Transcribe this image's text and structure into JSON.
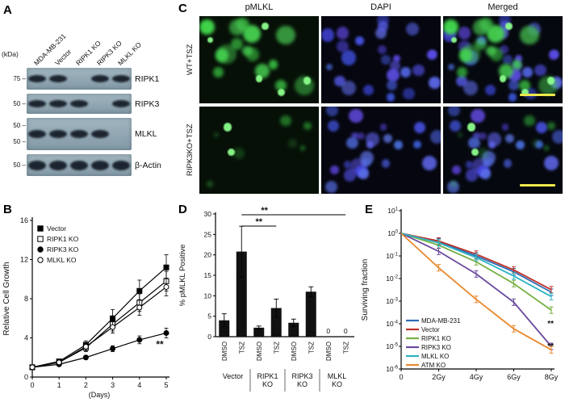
{
  "panel_a": {
    "label": "A",
    "kda_label": "(kDa)",
    "lane_labels": [
      "MDA-MB-231",
      "Vector",
      "RIPK1 KO",
      "RIPK3 KO",
      "MLKL KO"
    ],
    "blots": [
      {
        "protein": "RIPK1",
        "markers": [
          "75"
        ],
        "bands": [
          1,
          1,
          0,
          1,
          1
        ]
      },
      {
        "protein": "RIPK3",
        "markers": [
          "50"
        ],
        "bands": [
          1,
          1,
          1,
          0,
          1
        ]
      },
      {
        "protein": "MLKL",
        "markers": [
          "50",
          "50"
        ],
        "bands": [
          1,
          1,
          1,
          1,
          0
        ]
      },
      {
        "protein": "β-Actin",
        "markers": [
          "50"
        ],
        "bands": [
          1,
          1,
          1,
          1,
          1
        ]
      }
    ]
  },
  "panel_b": {
    "label": "B",
    "chart_data": {
      "type": "line",
      "xlabel": "(Days)",
      "ylabel": "Relative Cell Growth",
      "x": [
        0,
        1,
        2,
        3,
        4,
        5
      ],
      "ylim": [
        0,
        16
      ],
      "yticks": [
        0,
        4,
        8,
        12,
        16
      ],
      "legend_position": "top-left",
      "series": [
        {
          "name": "Vector",
          "marker": "square-filled",
          "values": [
            1.0,
            1.6,
            3.3,
            6.0,
            8.8,
            11.2
          ],
          "errors": [
            0.1,
            0.2,
            0.4,
            0.9,
            1.1,
            1.3
          ]
        },
        {
          "name": "RIPK1 KO",
          "marker": "square-open",
          "values": [
            1.0,
            1.5,
            3.0,
            5.4,
            7.6,
            9.8
          ],
          "errors": [
            0.1,
            0.2,
            0.4,
            0.7,
            0.9,
            1.0
          ]
        },
        {
          "name": "RIPK3 KO",
          "marker": "circle-filled",
          "values": [
            1.0,
            1.3,
            2.0,
            2.9,
            3.8,
            4.5
          ],
          "errors": [
            0.1,
            0.1,
            0.2,
            0.3,
            0.4,
            0.5
          ]
        },
        {
          "name": "MLKL KO",
          "marker": "circle-open",
          "values": [
            1.0,
            1.5,
            3.1,
            5.1,
            7.1,
            9.2
          ],
          "errors": [
            0.1,
            0.2,
            0.4,
            0.6,
            0.8,
            0.9
          ]
        }
      ],
      "annotation": {
        "text": "**",
        "x": 5,
        "y": 3.0
      }
    }
  },
  "panel_c": {
    "label": "C",
    "column_headers": [
      "pMLKL",
      "DAPI",
      "Merged"
    ],
    "row_labels": [
      "WT+TSZ",
      "RIPK3KO+TSZ"
    ],
    "cells": [
      {
        "name": "wt-pmlkl",
        "row": 0,
        "col": 0,
        "channel": "green",
        "green_density": "high",
        "scalebar": false
      },
      {
        "name": "wt-dapi",
        "row": 0,
        "col": 1,
        "channel": "blue",
        "green_density": "none",
        "scalebar": false
      },
      {
        "name": "wt-merged",
        "row": 0,
        "col": 2,
        "channel": "merged",
        "green_density": "high",
        "scalebar": true
      },
      {
        "name": "ripk3ko-pmlkl",
        "row": 1,
        "col": 0,
        "channel": "green",
        "green_density": "low",
        "scalebar": false
      },
      {
        "name": "ripk3ko-dapi",
        "row": 1,
        "col": 1,
        "channel": "blue",
        "green_density": "none",
        "scalebar": false
      },
      {
        "name": "ripk3ko-merged",
        "row": 1,
        "col": 2,
        "channel": "merged",
        "green_density": "low",
        "scalebar": true
      }
    ],
    "scalebar_color": "#ede84b"
  },
  "panel_d": {
    "label": "D",
    "chart_data": {
      "type": "bar",
      "ylabel": "% pMLKL Positive",
      "ylim": [
        0,
        30
      ],
      "yticks": [
        0,
        5,
        10,
        15,
        20,
        25,
        30
      ],
      "bar_color": "#111111",
      "groups": [
        {
          "name": "Vector",
          "bars": [
            {
              "label": "DMSO",
              "value": 4.0,
              "error": 1.6
            },
            {
              "label": "TSZ",
              "value": 20.8,
              "error": 6.2
            }
          ]
        },
        {
          "name": "RIPK1 KO",
          "bars": [
            {
              "label": "DMSO",
              "value": 2.2,
              "error": 0.4
            },
            {
              "label": "TSZ",
              "value": 7.0,
              "error": 2.2
            }
          ]
        },
        {
          "name": "RIPK3 KO",
          "bars": [
            {
              "label": "DMSO",
              "value": 3.4,
              "error": 0.9
            },
            {
              "label": "TSZ",
              "value": 11.0,
              "error": 1.2
            }
          ]
        },
        {
          "name": "MLKL KO",
          "bars": [
            {
              "label": "DMSO",
              "value": 0,
              "error": 0,
              "zero_label": "0"
            },
            {
              "label": "TSZ",
              "value": 0,
              "error": 0,
              "zero_label": "0"
            }
          ]
        }
      ],
      "significance_brackets": [
        {
          "from_bar": 1,
          "to_bar": 3,
          "label": "**",
          "level": 1
        },
        {
          "from_bar": 1,
          "to_bar": 7,
          "label": "**",
          "level": 2
        }
      ]
    }
  },
  "panel_e": {
    "label": "E",
    "chart_data": {
      "type": "line",
      "yscale": "log",
      "ylabel": "Surviving fraction",
      "x_labels": [
        "0",
        "2Gy",
        "4Gy",
        "6Gy",
        "8Gy"
      ],
      "y_exponents": [
        1,
        0,
        -1,
        -2,
        -3,
        -4,
        -5,
        -6
      ],
      "legend_position": "bottom-left",
      "series": [
        {
          "name": "MDA-MB-231",
          "color": "#2e6db4",
          "values": [
            1,
            0.42,
            0.1,
            0.02,
            0.0025
          ]
        },
        {
          "name": "Vector",
          "color": "#bf3128",
          "values": [
            1,
            0.46,
            0.12,
            0.024,
            0.0032
          ]
        },
        {
          "name": "RIPK1 KO",
          "color": "#76b043",
          "values": [
            1,
            0.3,
            0.055,
            0.006,
            0.0004
          ]
        },
        {
          "name": "RIPK3 KO",
          "color": "#6a4a9e",
          "values": [
            1,
            0.16,
            0.016,
            0.0009,
            1e-05
          ]
        },
        {
          "name": "MLKL KO",
          "color": "#2fb3c4",
          "values": [
            1,
            0.38,
            0.085,
            0.013,
            0.0016
          ]
        },
        {
          "name": "ATM KO",
          "color": "#e8892f",
          "values": [
            1,
            0.03,
            0.0012,
            6e-05,
            7e-06
          ]
        }
      ],
      "annotations": [
        {
          "text": "**",
          "y": 0.0001
        },
        {
          "text": "**",
          "y": 1e-05
        }
      ]
    }
  }
}
